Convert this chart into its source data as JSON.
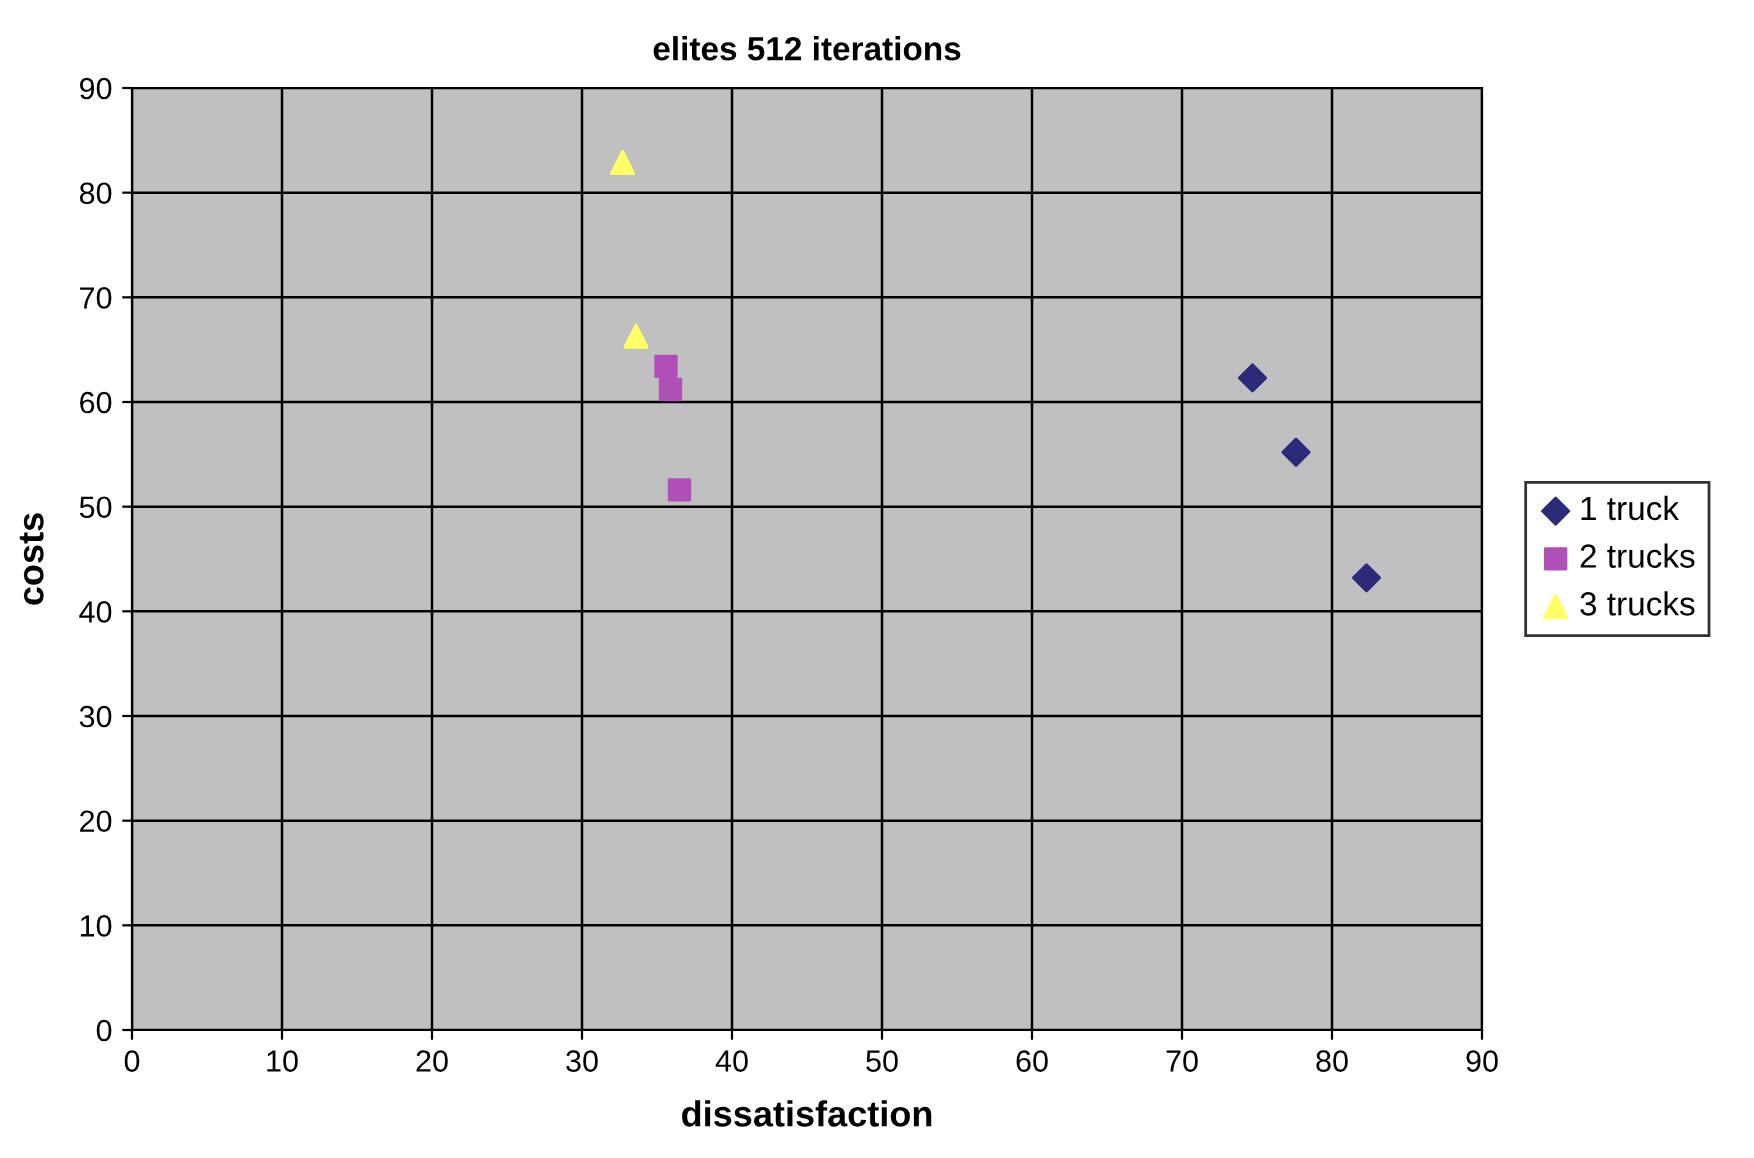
{
  "chart_data": {
    "type": "scatter",
    "title": "elites 512 iterations",
    "xlabel": "dissatisfaction",
    "ylabel": "costs",
    "xlim": [
      0,
      90
    ],
    "xticks": [
      0,
      10,
      20,
      30,
      40,
      50,
      60,
      70,
      80,
      90
    ],
    "ylim": [
      0,
      90
    ],
    "yticks": [
      0,
      10,
      20,
      30,
      40,
      50,
      60,
      70,
      80,
      90
    ],
    "grid": true,
    "legend": "right",
    "series": [
      {
        "name": "1 truck",
        "color": "#2b2b7a",
        "marker": "diamond",
        "x": [
          74.7,
          77.6,
          82.3
        ],
        "values": [
          62.3,
          55.2,
          43.2
        ]
      },
      {
        "name": "2 trucks",
        "color": "#b04fb8",
        "marker": "square",
        "x": [
          35.6,
          35.9,
          36.5
        ],
        "values": [
          63.4,
          61.2,
          51.6
        ]
      },
      {
        "name": "3 trucks",
        "color": "#ffff66",
        "marker": "triangle",
        "x": [
          32.7,
          33.6
        ],
        "values": [
          82.9,
          66.3
        ]
      }
    ]
  }
}
